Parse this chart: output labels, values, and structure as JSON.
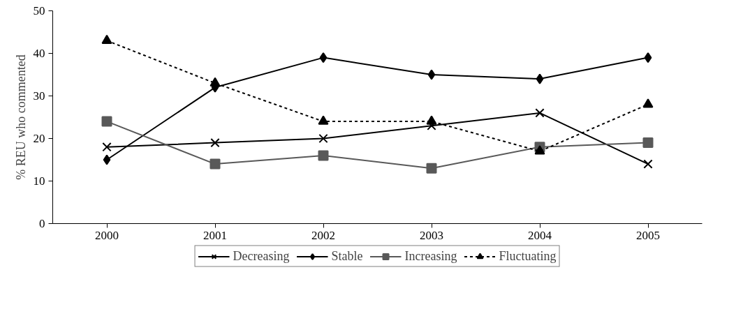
{
  "chart_data": {
    "type": "line",
    "ylabel": "% REU who commented",
    "categories": [
      "2000",
      "2001",
      "2002",
      "2003",
      "2004",
      "2005"
    ],
    "ylim": [
      0,
      50
    ],
    "yticks": [
      0,
      10,
      20,
      30,
      40,
      50
    ],
    "grid": false,
    "legend": "bottom",
    "series": [
      {
        "name": "Decreasing",
        "color": "#000000",
        "marker": "cross",
        "line_style": "solid",
        "values": [
          18,
          19,
          20,
          23,
          26,
          14
        ]
      },
      {
        "name": "Stable",
        "color": "#000000",
        "marker": "diamond",
        "line_style": "solid",
        "values": [
          15,
          32,
          39,
          35,
          34,
          39
        ]
      },
      {
        "name": "Increasing",
        "color": "#595959",
        "marker": "square",
        "line_style": "solid",
        "values": [
          24,
          14,
          16,
          13,
          18,
          19
        ]
      },
      {
        "name": "Fluctuating",
        "color": "#000000",
        "marker": "triangle",
        "line_style": "dashed",
        "values": [
          43,
          33,
          24,
          24,
          17,
          28
        ]
      }
    ]
  }
}
